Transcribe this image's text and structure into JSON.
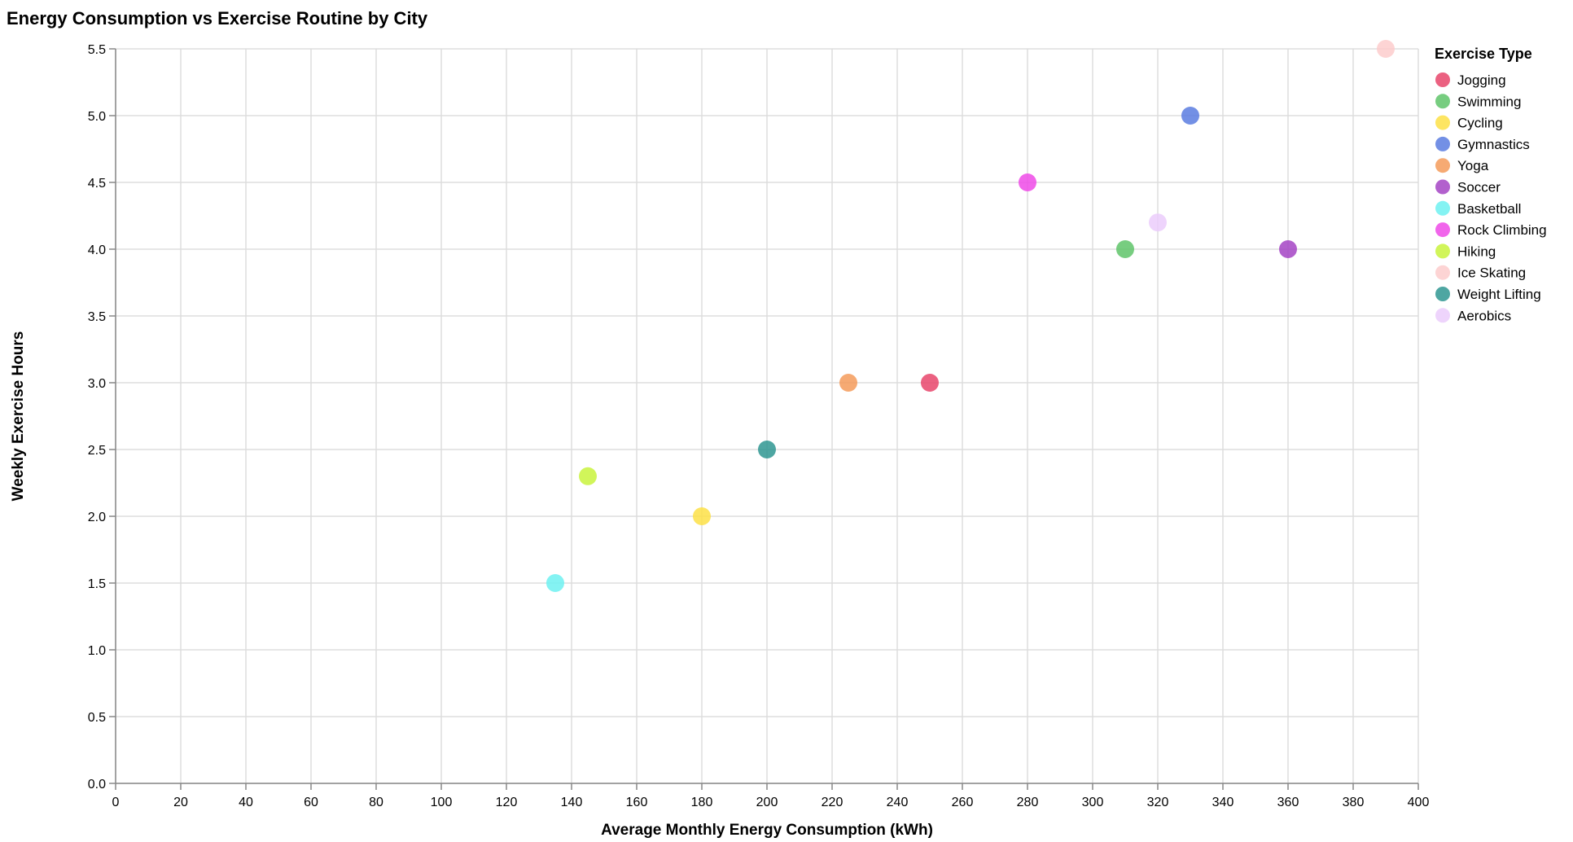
{
  "chart_data": {
    "type": "scatter",
    "title": "Energy Consumption vs Exercise Routine by City",
    "xlabel": "Average Monthly Energy Consumption (kWh)",
    "ylabel": "Weekly Exercise Hours",
    "xlim": [
      0,
      400
    ],
    "ylim": [
      0,
      5.5
    ],
    "x_ticks": [
      0,
      20,
      40,
      60,
      80,
      100,
      120,
      140,
      160,
      180,
      200,
      220,
      240,
      260,
      280,
      300,
      320,
      340,
      360,
      380,
      400
    ],
    "y_ticks": [
      "0.0",
      "0.5",
      "1.0",
      "1.5",
      "2.0",
      "2.5",
      "3.0",
      "3.5",
      "4.0",
      "4.5",
      "5.0",
      "5.5"
    ],
    "grid": true,
    "legend_title": "Exercise Type",
    "legend_position": "right",
    "series": [
      {
        "name": "Jogging",
        "color": "#e8456b",
        "points": [
          [
            250,
            3.0
          ]
        ]
      },
      {
        "name": "Swimming",
        "color": "#5fc46a",
        "points": [
          [
            310,
            4.0
          ]
        ]
      },
      {
        "name": "Cycling",
        "color": "#fde047",
        "points": [
          [
            180,
            2.0
          ]
        ]
      },
      {
        "name": "Gymnastics",
        "color": "#5b7de0",
        "points": [
          [
            330,
            5.0
          ]
        ]
      },
      {
        "name": "Yoga",
        "color": "#f59b5a",
        "points": [
          [
            225,
            3.0
          ]
        ]
      },
      {
        "name": "Soccer",
        "color": "#a444c4",
        "points": [
          [
            360,
            4.0
          ]
        ]
      },
      {
        "name": "Basketball",
        "color": "#6ff1f1",
        "points": [
          [
            135,
            1.5
          ]
        ]
      },
      {
        "name": "Rock Climbing",
        "color": "#ee4ae8",
        "points": [
          [
            280,
            4.5
          ]
        ]
      },
      {
        "name": "Hiking",
        "color": "#c9f33d",
        "points": [
          [
            145,
            2.3
          ]
        ]
      },
      {
        "name": "Ice Skating",
        "color": "#fdcccc",
        "points": [
          [
            390,
            5.5
          ]
        ]
      },
      {
        "name": "Weight Lifting",
        "color": "#2f9692",
        "points": [
          [
            200,
            2.5
          ]
        ]
      },
      {
        "name": "Aerobics",
        "color": "#ebcdfb",
        "points": [
          [
            320,
            4.2
          ]
        ]
      }
    ]
  }
}
